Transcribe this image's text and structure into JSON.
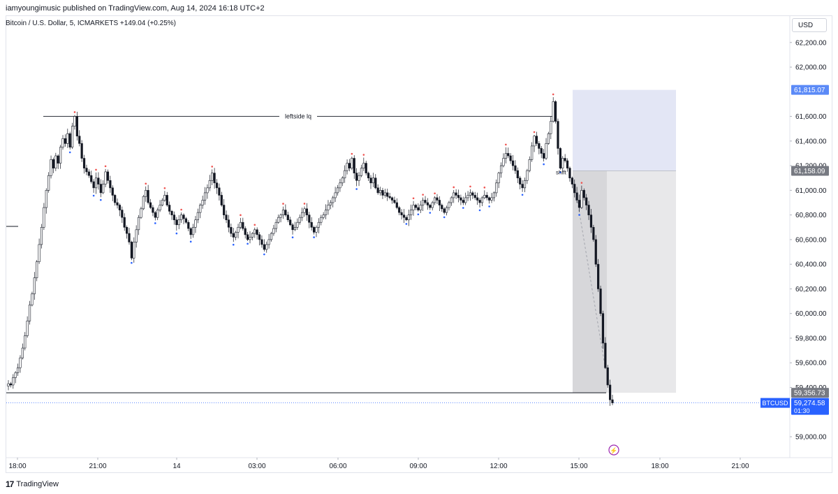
{
  "header": {
    "published_text": "iamyoungimusic published on TradingView.com, Aug 14, 2024 16:18 UTC+2"
  },
  "symbol": {
    "text": "Bitcoin / U.S. Dollar, 5, ICMARKETS  +149.04 (+0.25%)"
  },
  "currency_label": "USD",
  "footer": {
    "brand": "TradingView",
    "logo_glyph": "17"
  },
  "colors": {
    "candle": "#131722",
    "high_marker": "#ef5350",
    "low_marker": "#2962ff",
    "profit_zone": "#e3e6f5",
    "risk_zone": "#e8e8ea",
    "risk_dark": "#d7d7da",
    "price_tag_blue": "#2962ff",
    "price_tag_gray": "#777a82",
    "tag_blue_light": "#5b8af7",
    "dotted_line": "#2962ff",
    "signal_icon": "#9c27b0"
  },
  "annotations": {
    "leftside_lq": "leftside lq",
    "shift": "shift"
  },
  "price_tags": {
    "target": "61,815.07",
    "entry": "61,158.09",
    "stop_level": "59,356.73",
    "last_price": "59,274.58",
    "countdown": "01:30",
    "symbol_tag": "BTCUSD"
  },
  "chart_data": {
    "type": "candlestick",
    "title": "Bitcoin / U.S. Dollar, 5, ICMARKETS",
    "xlabel": "",
    "ylabel": "",
    "x_ticks": [
      "18:00",
      "21:00",
      "14",
      "03:00",
      "06:00",
      "09:00",
      "12:00",
      "15:00",
      "18:00",
      "21:00"
    ],
    "y_ticks": [
      62200,
      62000,
      61600,
      61400,
      61200,
      61000,
      60800,
      60600,
      60400,
      60200,
      60000,
      59800,
      59600,
      59400,
      59000
    ],
    "ylim": [
      58830,
      62420
    ],
    "horizontal_lines": [
      {
        "label": "leftside lq",
        "value": 61600
      },
      {
        "label": "",
        "value": 59356.73
      }
    ],
    "position_tool": {
      "entry": 61158.09,
      "target": 61815.07,
      "stop": 59356.73
    },
    "last_price": 59274.58,
    "series": [
      {
        "close_path": [
          59430,
          59420,
          59480,
          59520,
          59560,
          59640,
          59720,
          59820,
          59940,
          60070,
          60160,
          60290,
          60420,
          60560,
          60700,
          60860,
          61000,
          61120,
          61250,
          61180,
          61280,
          61220,
          61350,
          61420,
          61380,
          61460,
          61350,
          61520,
          61600,
          61440,
          61380,
          61260,
          61180,
          61150,
          61120,
          61070,
          61020,
          61100,
          61050,
          60980,
          61050,
          61150,
          61080,
          61020,
          60960,
          60900,
          60880,
          60840,
          60780,
          60700,
          60650,
          60580,
          60450,
          60580,
          60680,
          60780,
          60850,
          60950,
          61000,
          60900,
          60860,
          60820,
          60780,
          60840,
          60880,
          60920,
          60960,
          60880,
          60830,
          60800,
          60760,
          60720,
          60760,
          60800,
          60770,
          60740,
          60690,
          60640,
          60700,
          60760,
          60820,
          60880,
          60920,
          60980,
          61020,
          61080,
          61140,
          61060,
          61020,
          60960,
          60880,
          60800,
          60760,
          60700,
          60650,
          60620,
          60660,
          60700,
          60740,
          60690,
          60640,
          60600,
          60620,
          60650,
          60680,
          60640,
          60600,
          60560,
          60520,
          60560,
          60600,
          60650,
          60690,
          60740,
          60780,
          60800,
          60840,
          60800,
          60760,
          60720,
          60680,
          60700,
          60740,
          60780,
          60820,
          60850,
          60800,
          60740,
          60700,
          60660,
          60700,
          60740,
          60780,
          60800,
          60840,
          60880,
          60900,
          60940,
          60980,
          61020,
          61060,
          61100,
          61160,
          61220,
          61180,
          61260,
          61140,
          61080,
          61120,
          61180,
          61220,
          61140,
          61100,
          61060,
          61100,
          61020,
          60980,
          61000,
          60960,
          60980,
          60950,
          60940,
          60920,
          60900,
          60860,
          60820,
          60800,
          60780,
          60760,
          60800,
          60840,
          60880,
          60860,
          60840,
          60880,
          60920,
          60900,
          60880,
          60860,
          60900,
          60940,
          60920,
          60880,
          60850,
          60820,
          60860,
          60900,
          60940,
          60980,
          60960,
          60940,
          60920,
          60900,
          60940,
          60960,
          60980,
          60960,
          60940,
          60920,
          60900,
          60940,
          60960,
          60940,
          60920,
          60940,
          60980,
          61060,
          61140,
          61200,
          61260,
          61300,
          61280,
          61240,
          61200,
          61160,
          61100,
          61050,
          61020,
          61080,
          61160,
          61250,
          61360,
          61440,
          61380,
          61340,
          61300,
          61260,
          61380,
          61460,
          61560,
          61720,
          61560,
          61340,
          61180,
          61260,
          61240,
          61180,
          61100,
          61050,
          60980,
          60920,
          60860,
          61000,
          60940,
          60880,
          60800,
          60700,
          60600,
          60400,
          60200,
          60000,
          59760,
          59560,
          59420,
          59300,
          59274.58
        ]
      }
    ]
  }
}
